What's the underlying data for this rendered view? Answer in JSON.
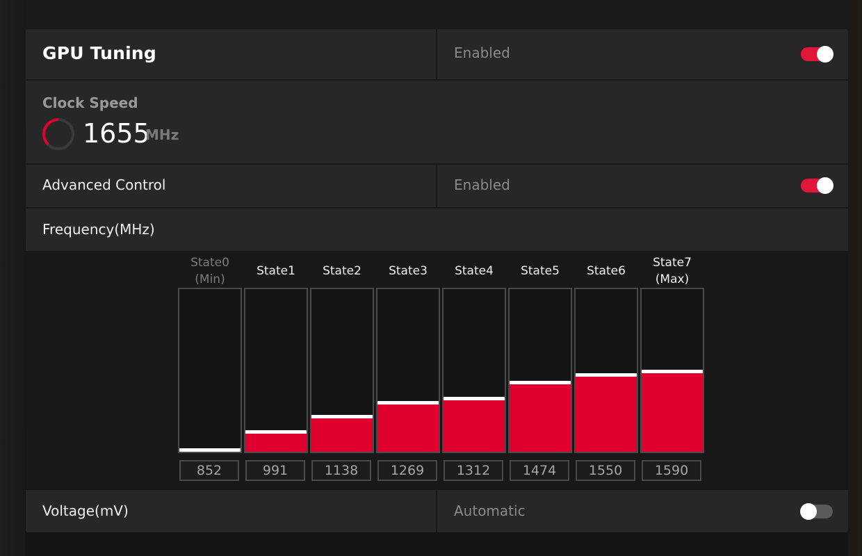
{
  "gpu_tuning": {
    "title": "GPU Tuning",
    "status": "Enabled",
    "enabled": true
  },
  "clock_speed": {
    "label": "Clock Speed",
    "value": "1655",
    "unit": "MHz"
  },
  "advanced_control": {
    "label": "Advanced Control",
    "status": "Enabled",
    "enabled": true
  },
  "frequency": {
    "label": "Frequency(MHz)",
    "states": [
      {
        "label": "State0\n(Min)",
        "value": "852",
        "level": 0.0,
        "dim": true
      },
      {
        "label": "State1",
        "value": "991",
        "level": 0.11,
        "dim": false
      },
      {
        "label": "State2",
        "value": "1138",
        "level": 0.205,
        "dim": false
      },
      {
        "label": "State3",
        "value": "1269",
        "level": 0.29,
        "dim": false
      },
      {
        "label": "State4",
        "value": "1312",
        "level": 0.315,
        "dim": false
      },
      {
        "label": "State5",
        "value": "1474",
        "level": 0.415,
        "dim": false
      },
      {
        "label": "State6",
        "value": "1550",
        "level": 0.46,
        "dim": false
      },
      {
        "label": "State7\n(Max)",
        "value": "1590",
        "level": 0.485,
        "dim": false
      }
    ]
  },
  "voltage": {
    "label": "Voltage(mV)",
    "status": "Automatic",
    "enabled": false
  },
  "colors": {
    "accent": "#e0002f",
    "toggle_on": "#e0163b"
  }
}
